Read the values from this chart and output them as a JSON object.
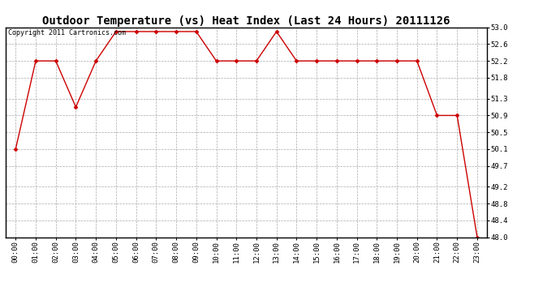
{
  "title": "Outdoor Temperature (vs) Heat Index (Last 24 Hours) 20111126",
  "copyright": "Copyright 2011 Cartronics.com",
  "x_labels": [
    "00:00",
    "01:00",
    "02:00",
    "03:00",
    "04:00",
    "05:00",
    "06:00",
    "07:00",
    "08:00",
    "09:00",
    "10:00",
    "11:00",
    "12:00",
    "13:00",
    "14:00",
    "15:00",
    "16:00",
    "17:00",
    "18:00",
    "19:00",
    "20:00",
    "21:00",
    "22:00",
    "23:00"
  ],
  "y_values": [
    50.1,
    52.2,
    52.2,
    51.1,
    52.2,
    52.9,
    52.9,
    52.9,
    52.9,
    52.9,
    52.2,
    52.2,
    52.2,
    52.9,
    52.2,
    52.2,
    52.2,
    52.2,
    52.2,
    52.2,
    52.2,
    50.9,
    50.9,
    48.0
  ],
  "y_min": 48.0,
  "y_max": 53.0,
  "y_ticks": [
    48.0,
    48.4,
    48.8,
    49.2,
    49.7,
    50.1,
    50.5,
    50.9,
    51.3,
    51.8,
    52.2,
    52.6,
    53.0
  ],
  "line_color": "#cc0000",
  "marker": "D",
  "marker_size": 2.5,
  "bg_color": "#ffffff",
  "grid_color": "#aaaaaa",
  "title_fontsize": 10,
  "copyright_fontsize": 6,
  "tick_fontsize": 6.5
}
